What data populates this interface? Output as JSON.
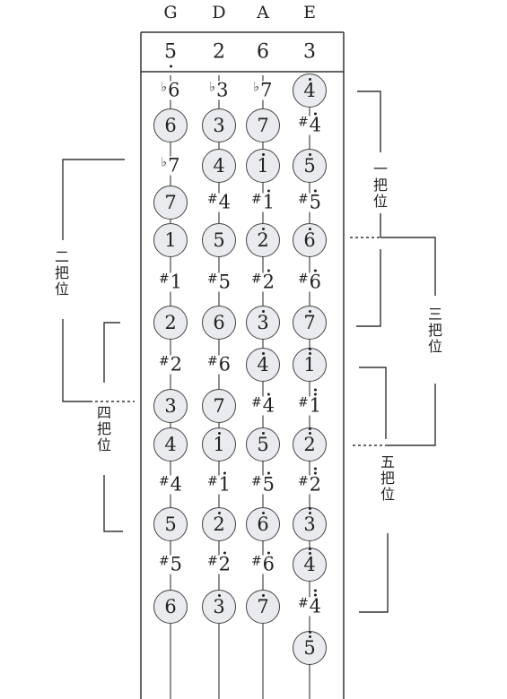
{
  "strings": [
    "G",
    "D",
    "A",
    "E"
  ],
  "tuning": [
    {
      "d": "5",
      "dot": "bottom"
    },
    {
      "d": "2",
      "dot": ""
    },
    {
      "d": "6",
      "dot": ""
    },
    {
      "d": "3",
      "dot": ""
    }
  ],
  "positions": [
    {
      "text": "二把位"
    },
    {
      "text": "一把位"
    },
    {
      "text": "三把位"
    },
    {
      "text": "四把位"
    },
    {
      "text": "五把位"
    }
  ],
  "notes": {
    "G": [
      {
        "pre": "♭",
        "d": "6",
        "dot": "",
        "circle": false,
        "row": 0
      },
      {
        "pre": "",
        "d": "6",
        "dot": "",
        "circle": true,
        "row": 1
      },
      {
        "pre": "♭",
        "d": "7",
        "dot": "",
        "circle": false,
        "row": 2
      },
      {
        "pre": "",
        "d": "7",
        "dot": "",
        "circle": true,
        "row": 3
      },
      {
        "pre": "",
        "d": "1",
        "dot": "",
        "circle": true,
        "row": 4
      },
      {
        "pre": "#",
        "d": "1",
        "dot": "",
        "circle": false,
        "row": 5
      },
      {
        "pre": "",
        "d": "2",
        "dot": "",
        "circle": true,
        "row": 6
      },
      {
        "pre": "#",
        "d": "2",
        "dot": "",
        "circle": false,
        "row": 7
      },
      {
        "pre": "",
        "d": "3",
        "dot": "",
        "circle": true,
        "row": 8
      },
      {
        "pre": "",
        "d": "4",
        "dot": "",
        "circle": true,
        "row": 9
      },
      {
        "pre": "#",
        "d": "4",
        "dot": "",
        "circle": false,
        "row": 10
      },
      {
        "pre": "",
        "d": "5",
        "dot": "",
        "circle": true,
        "row": 11
      },
      {
        "pre": "#",
        "d": "5",
        "dot": "",
        "circle": false,
        "row": 12
      },
      {
        "pre": "",
        "d": "6",
        "dot": "",
        "circle": true,
        "row": 13
      }
    ],
    "D": [
      {
        "pre": "♭",
        "d": "3",
        "dot": "",
        "circle": false,
        "row": 0
      },
      {
        "pre": "",
        "d": "3",
        "dot": "",
        "circle": true,
        "row": 1
      },
      {
        "pre": "",
        "d": "4",
        "dot": "",
        "circle": true,
        "row": 2
      },
      {
        "pre": "#",
        "d": "4",
        "dot": "",
        "circle": false,
        "row": 3
      },
      {
        "pre": "",
        "d": "5",
        "dot": "",
        "circle": true,
        "row": 4
      },
      {
        "pre": "#",
        "d": "5",
        "dot": "",
        "circle": false,
        "row": 5
      },
      {
        "pre": "",
        "d": "6",
        "dot": "",
        "circle": true,
        "row": 6
      },
      {
        "pre": "#",
        "d": "6",
        "dot": "",
        "circle": false,
        "row": 7
      },
      {
        "pre": "",
        "d": "7",
        "dot": "",
        "circle": true,
        "row": 8
      },
      {
        "pre": "",
        "d": "1",
        "dot": "top",
        "circle": true,
        "row": 9
      },
      {
        "pre": "#",
        "d": "1",
        "dot": "top",
        "circle": false,
        "row": 10
      },
      {
        "pre": "",
        "d": "2",
        "dot": "top",
        "circle": true,
        "row": 11
      },
      {
        "pre": "#",
        "d": "2",
        "dot": "top",
        "circle": false,
        "row": 12
      },
      {
        "pre": "",
        "d": "3",
        "dot": "top",
        "circle": true,
        "row": 13
      }
    ],
    "A": [
      {
        "pre": "♭",
        "d": "7",
        "dot": "",
        "circle": false,
        "row": 0
      },
      {
        "pre": "",
        "d": "7",
        "dot": "",
        "circle": true,
        "row": 1
      },
      {
        "pre": "",
        "d": "1",
        "dot": "top",
        "circle": true,
        "row": 2
      },
      {
        "pre": "#",
        "d": "1",
        "dot": "top",
        "circle": false,
        "row": 3
      },
      {
        "pre": "",
        "d": "2",
        "dot": "top",
        "circle": true,
        "row": 4
      },
      {
        "pre": "#",
        "d": "2",
        "dot": "top",
        "circle": false,
        "row": 5
      },
      {
        "pre": "",
        "d": "3",
        "dot": "top",
        "circle": true,
        "row": 6
      },
      {
        "pre": "",
        "d": "4",
        "dot": "top",
        "circle": true,
        "row": 7
      },
      {
        "pre": "#",
        "d": "4",
        "dot": "top",
        "circle": false,
        "row": 8
      },
      {
        "pre": "",
        "d": "5",
        "dot": "top",
        "circle": true,
        "row": 9
      },
      {
        "pre": "#",
        "d": "5",
        "dot": "top",
        "circle": false,
        "row": 10
      },
      {
        "pre": "",
        "d": "6",
        "dot": "top",
        "circle": true,
        "row": 11
      },
      {
        "pre": "#",
        "d": "6",
        "dot": "top",
        "circle": false,
        "row": 12
      },
      {
        "pre": "",
        "d": "7",
        "dot": "top",
        "circle": true,
        "row": 13
      }
    ],
    "E": [
      {
        "pre": "",
        "d": "4",
        "dot": "top",
        "circle": true,
        "row": 0
      },
      {
        "pre": "#",
        "d": "4",
        "dot": "top",
        "circle": false,
        "row": 1
      },
      {
        "pre": "",
        "d": "5",
        "dot": "top",
        "circle": true,
        "row": 2
      },
      {
        "pre": "#",
        "d": "5",
        "dot": "top",
        "circle": false,
        "row": 3
      },
      {
        "pre": "",
        "d": "6",
        "dot": "top",
        "circle": true,
        "row": 4
      },
      {
        "pre": "#",
        "d": "6",
        "dot": "top",
        "circle": false,
        "row": 5
      },
      {
        "pre": "",
        "d": "7",
        "dot": "top",
        "circle": true,
        "row": 6
      },
      {
        "pre": "",
        "d": "1",
        "dot": "top2",
        "circle": true,
        "row": 7
      },
      {
        "pre": "#",
        "d": "1",
        "dot": "top2",
        "circle": false,
        "row": 8
      },
      {
        "pre": "",
        "d": "2",
        "dot": "top2",
        "circle": true,
        "row": 9
      },
      {
        "pre": "#",
        "d": "2",
        "dot": "top2",
        "circle": false,
        "row": 10
      },
      {
        "pre": "",
        "d": "3",
        "dot": "top2",
        "circle": true,
        "row": 11
      },
      {
        "pre": "",
        "d": "4",
        "dot": "top2",
        "circle": true,
        "row": 12
      },
      {
        "pre": "#",
        "d": "4",
        "dot": "top2",
        "circle": false,
        "row": 13
      },
      {
        "pre": "",
        "d": "5",
        "dot": "top2",
        "circle": true,
        "row": 14
      }
    ]
  }
}
